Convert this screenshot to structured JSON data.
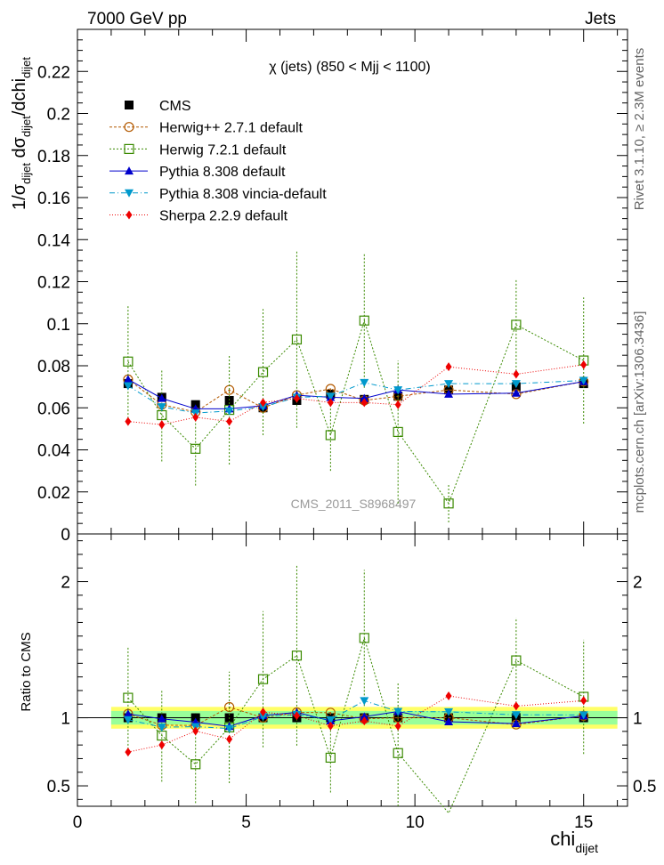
{
  "header": {
    "energy_label": "7000 GeV pp",
    "process_label": "Jets",
    "rivet_label": "Rivet 3.1.10, ≥ 2.3M events",
    "site_label": "mcplots.cern.ch [arXiv:1306.3436]",
    "watermark": "CMS_2011_S8968497"
  },
  "chart_data": {
    "type": "scatter",
    "title": "χ (jets) (850 < Mjj < 1100)",
    "xlabel": "chi",
    "xlabel_sub": "dijet",
    "ylabel_main": "1/σ_dijet dσ_dijet/dchi_dijet",
    "ylabel_ratio": "Ratio to CMS",
    "xlim": [
      0,
      16.3
    ],
    "ylim_main": [
      0,
      0.24
    ],
    "ylim_ratio": [
      0.35,
      2.35
    ],
    "ratio_ref_band": {
      "inner": 0.05,
      "outer": 0.08
    },
    "x_ticks": [
      "0",
      "5",
      "10",
      "15"
    ],
    "y_ticks_main": [
      "0",
      "0.02",
      "0.04",
      "0.06",
      "0.08",
      "0.1",
      "0.12",
      "0.14",
      "0.16",
      "0.18",
      "0.2",
      "0.22"
    ],
    "y_ticks_ratio": [
      "0.5",
      "1",
      "2"
    ],
    "x": [
      1.5,
      2.5,
      3.5,
      4.5,
      5.5,
      6.5,
      7.5,
      8.5,
      9.5,
      11,
      13,
      15
    ],
    "series": [
      {
        "name": "CMS",
        "color": "#000000",
        "marker": "square-filled",
        "dash": "",
        "values": [
          0.0715,
          0.065,
          0.0615,
          0.0635,
          0.06,
          0.0635,
          0.0665,
          0.064,
          0.0655,
          0.0685,
          0.07,
          0.0715
        ],
        "errors": [
          0.0025,
          0.002,
          0.002,
          0.002,
          0.002,
          0.002,
          0.002,
          0.002,
          0.002,
          0.002,
          0.002,
          0.002
        ]
      },
      {
        "name": "Herwig++ 2.7.1 default",
        "color": "#b35900",
        "marker": "circle-open",
        "dash": "3,2",
        "values": [
          0.0735,
          0.0615,
          0.058,
          0.0685,
          0.06,
          0.066,
          0.069,
          0.0635,
          0.0655,
          0.0685,
          0.0665,
          0.0725
        ],
        "errors": [
          0.001,
          0.001,
          0.001,
          0.001,
          0.001,
          0.001,
          0.001,
          0.001,
          0.001,
          0.001,
          0.001,
          0.001
        ]
      },
      {
        "name": "Herwig 7.2.1 default",
        "color": "#3a8a00",
        "marker": "square-open",
        "dash": "2,2",
        "values": [
          0.082,
          0.0565,
          0.0405,
          0.059,
          0.077,
          0.0925,
          0.047,
          0.1015,
          0.0485,
          0.0145,
          0.0995,
          0.0825
        ],
        "errors": [
          0.027,
          0.022,
          0.0175,
          0.026,
          0.03,
          0.042,
          0.017,
          0.032,
          0.034,
          0.009,
          0.022,
          0.03
        ]
      },
      {
        "name": "Pythia 8.308 default",
        "color": "#0000cc",
        "marker": "triangle-up",
        "dash": "",
        "values": [
          0.0735,
          0.0645,
          0.0595,
          0.0595,
          0.061,
          0.066,
          0.065,
          0.0645,
          0.0685,
          0.0665,
          0.067,
          0.0725
        ],
        "errors": [
          0.0015,
          0.0015,
          0.0015,
          0.0015,
          0.0015,
          0.0015,
          0.0015,
          0.0015,
          0.002,
          0.0015,
          0.0015,
          0.0015
        ]
      },
      {
        "name": "Pythia 8.308 vincia-default",
        "color": "#0099cc",
        "marker": "triangle-down",
        "dash": "6,3,1,3",
        "values": [
          0.0705,
          0.0605,
          0.0575,
          0.0585,
          0.0605,
          0.065,
          0.0655,
          0.072,
          0.0685,
          0.0715,
          0.0715,
          0.073
        ],
        "errors": [
          0.001,
          0.001,
          0.001,
          0.001,
          0.001,
          0.001,
          0.001,
          0.001,
          0.001,
          0.001,
          0.001,
          0.001
        ]
      },
      {
        "name": "Sherpa 2.2.9 default",
        "color": "#ee0000",
        "marker": "diamond",
        "dash": "1,2",
        "values": [
          0.0535,
          0.052,
          0.0555,
          0.0535,
          0.0625,
          0.0645,
          0.0625,
          0.0625,
          0.0615,
          0.0795,
          0.076,
          0.0805
        ],
        "errors": [
          0.0015,
          0.0015,
          0.0015,
          0.0015,
          0.0015,
          0.0015,
          0.0015,
          0.0015,
          0.0015,
          0.0015,
          0.0015,
          0.0015
        ]
      }
    ]
  }
}
